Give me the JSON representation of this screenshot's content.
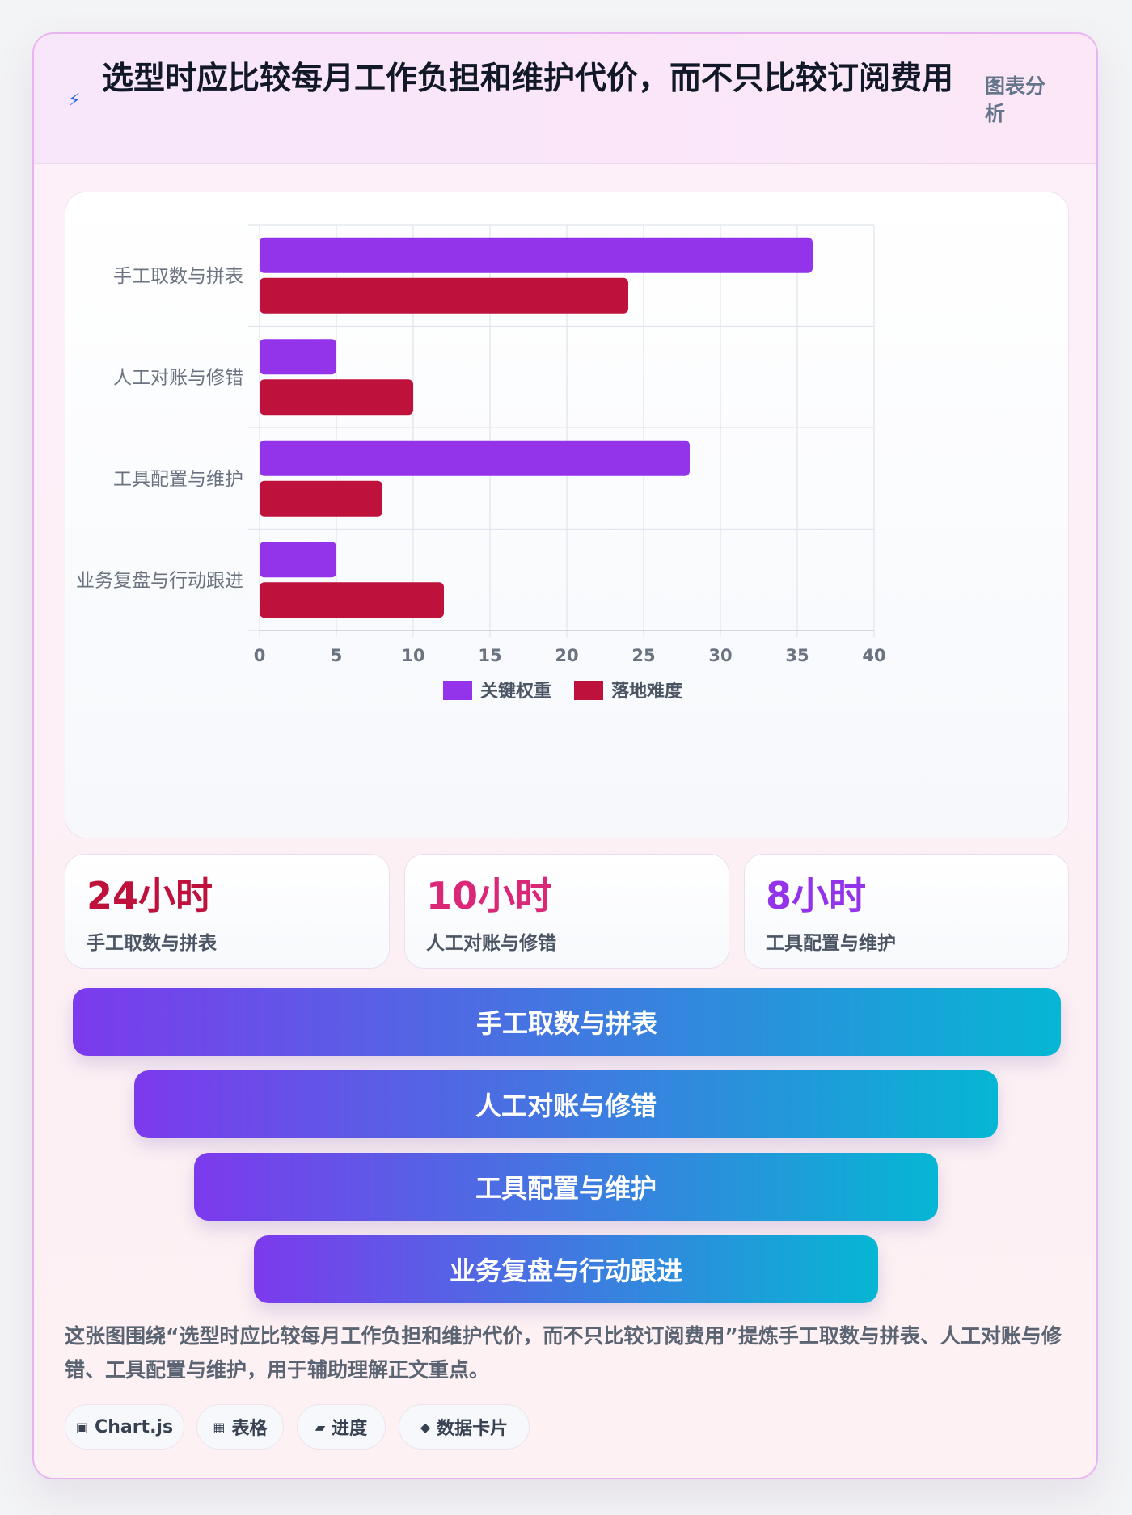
{
  "header": {
    "title": "选型时应比较每月工作负担和维护代价，而不只比较订阅费用",
    "tag": "图表分析"
  },
  "chart_data": {
    "type": "bar",
    "orientation": "horizontal",
    "categories": [
      "手工取数与拼表",
      "人工对账与修错",
      "工具配置与维护",
      "业务复盘与行动跟进"
    ],
    "series": [
      {
        "name": "关键权重",
        "color": "#9333ea",
        "values": [
          36,
          5,
          28,
          5
        ]
      },
      {
        "name": "落地难度",
        "color": "#be123c",
        "values": [
          24,
          10,
          8,
          12
        ]
      }
    ],
    "xlim": [
      0,
      40
    ],
    "xticks": [
      0,
      5,
      10,
      15,
      20,
      25,
      30,
      35,
      40
    ],
    "grid": true,
    "legend": "bottom"
  },
  "stats": [
    {
      "value": "24小时",
      "label": "手工取数与拼表",
      "color": "#be123c"
    },
    {
      "value": "10小时",
      "label": "人工对账与修错",
      "color": "#db2777"
    },
    {
      "value": "8小时",
      "label": "工具配置与维护",
      "color": "#9333ea"
    }
  ],
  "funnel": [
    "手工取数与拼表",
    "人工对账与修错",
    "工具配置与维护",
    "业务复盘与行动跟进"
  ],
  "description": "这张图围绕“选型时应比较每月工作负担和维护代价，而不只比较订阅费用”提炼手工取数与拼表、人工对账与修错、工具配置与维护，用于辅助理解正文重点。",
  "chips": [
    {
      "icon": "▣",
      "label": "Chart.js"
    },
    {
      "icon": "▦",
      "label": "表格"
    },
    {
      "icon": "▰",
      "label": "进度"
    },
    {
      "icon": "◆",
      "label": "数据卡片"
    }
  ]
}
